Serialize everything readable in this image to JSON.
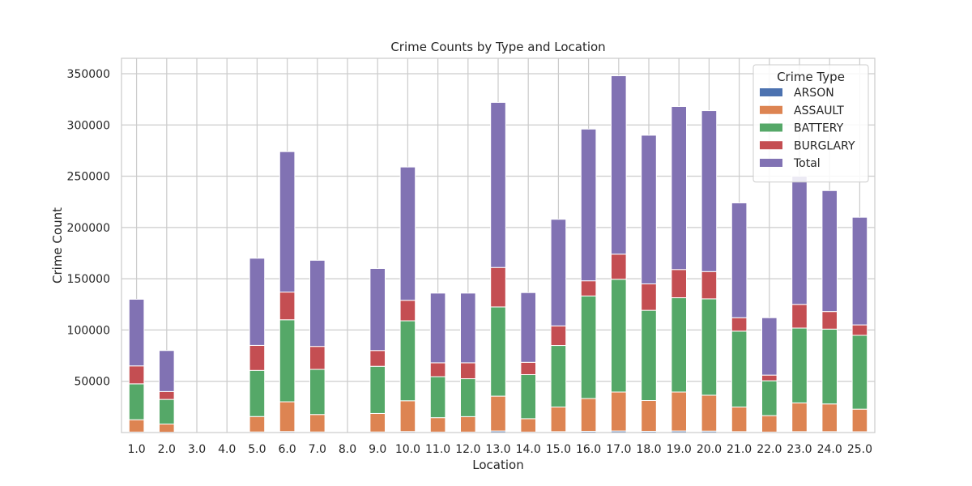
{
  "chart_data": {
    "type": "bar",
    "stacked": true,
    "title": "Crime Counts by Type and Location",
    "xlabel": "Location",
    "ylabel": "Crime Count",
    "ylim": [
      0,
      365000
    ],
    "yticks": [
      50000,
      100000,
      150000,
      200000,
      250000,
      300000,
      350000
    ],
    "grid": true,
    "legend": {
      "title": "Crime Type",
      "placement": "top-right"
    },
    "categories": [
      "1.0",
      "2.0",
      "3.0",
      "4.0",
      "5.0",
      "6.0",
      "7.0",
      "8.0",
      "9.0",
      "10.0",
      "11.0",
      "12.0",
      "13.0",
      "14.0",
      "15.0",
      "16.0",
      "17.0",
      "18.0",
      "19.0",
      "20.0",
      "21.0",
      "22.0",
      "23.0",
      "24.0",
      "25.0"
    ],
    "series": [
      {
        "name": "ARSON",
        "color": "#4c72b0",
        "values": [
          500,
          300,
          0,
          0,
          600,
          1000,
          600,
          0,
          600,
          1000,
          500,
          500,
          1500,
          500,
          900,
          1200,
          1500,
          1200,
          1500,
          1400,
          900,
          500,
          900,
          900,
          800
        ]
      },
      {
        "name": "ASSAULT",
        "color": "#dd8452",
        "values": [
          12000,
          8000,
          0,
          0,
          15000,
          29000,
          17000,
          0,
          18000,
          30000,
          14000,
          15000,
          34000,
          13000,
          24000,
          32000,
          38000,
          30000,
          38000,
          35000,
          24000,
          16000,
          28000,
          27000,
          22000
        ]
      },
      {
        "name": "BATTERY",
        "color": "#55a868",
        "values": [
          35000,
          24000,
          0,
          0,
          45000,
          80000,
          44000,
          0,
          46000,
          78000,
          40000,
          37000,
          87000,
          43000,
          60000,
          100000,
          110000,
          88000,
          92000,
          94000,
          74000,
          34000,
          73000,
          73000,
          72000
        ]
      },
      {
        "name": "BURGLARY",
        "color": "#c44e52",
        "values": [
          17500,
          7700,
          0,
          0,
          24400,
          27000,
          22400,
          0,
          15400,
          20000,
          13500,
          15500,
          38500,
          12000,
          19100,
          14800,
          24500,
          25800,
          27500,
          26600,
          13100,
          5500,
          23100,
          17100,
          10200
        ]
      },
      {
        "name": "Total",
        "color": "#8172b3",
        "values": [
          65000,
          40000,
          0,
          0,
          85000,
          137000,
          84000,
          0,
          80000,
          130000,
          68000,
          68000,
          161000,
          68000,
          104000,
          148000,
          174000,
          145000,
          159000,
          157000,
          112000,
          56000,
          125000,
          118000,
          105000
        ]
      }
    ]
  }
}
